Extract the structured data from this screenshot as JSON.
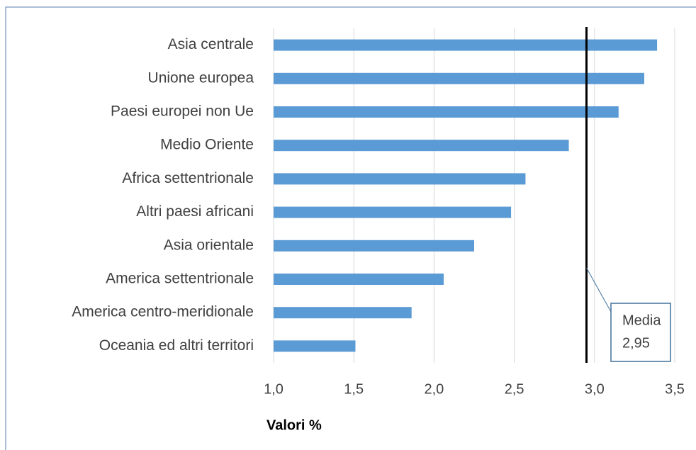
{
  "chart_data": {
    "type": "barh",
    "categories": [
      "Asia centrale",
      "Unione europea",
      "Paesi europei non Ue",
      "Medio Oriente",
      "Africa settentrionale",
      "Altri paesi africani",
      "Asia orientale",
      "America settentrionale",
      "America centro-meridionale",
      "Oceania ed altri territori"
    ],
    "values": [
      3.39,
      3.31,
      3.15,
      2.84,
      2.57,
      2.48,
      2.25,
      2.06,
      1.86,
      1.51
    ],
    "color": "#5b9bd5",
    "x_label": "Valori %",
    "xlim": [
      1.0,
      3.5
    ],
    "xticks": [
      {
        "value": 1.0,
        "label": "1,0"
      },
      {
        "value": 1.5,
        "label": "1,5"
      },
      {
        "value": 2.0,
        "label": "2,0"
      },
      {
        "value": 2.5,
        "label": "2,5"
      },
      {
        "value": 3.0,
        "label": "3,0"
      },
      {
        "value": 3.5,
        "label": "3,5"
      }
    ],
    "grid": true,
    "reference_line": {
      "name": "Media",
      "value": 2.95,
      "value_label": "2,95"
    }
  }
}
